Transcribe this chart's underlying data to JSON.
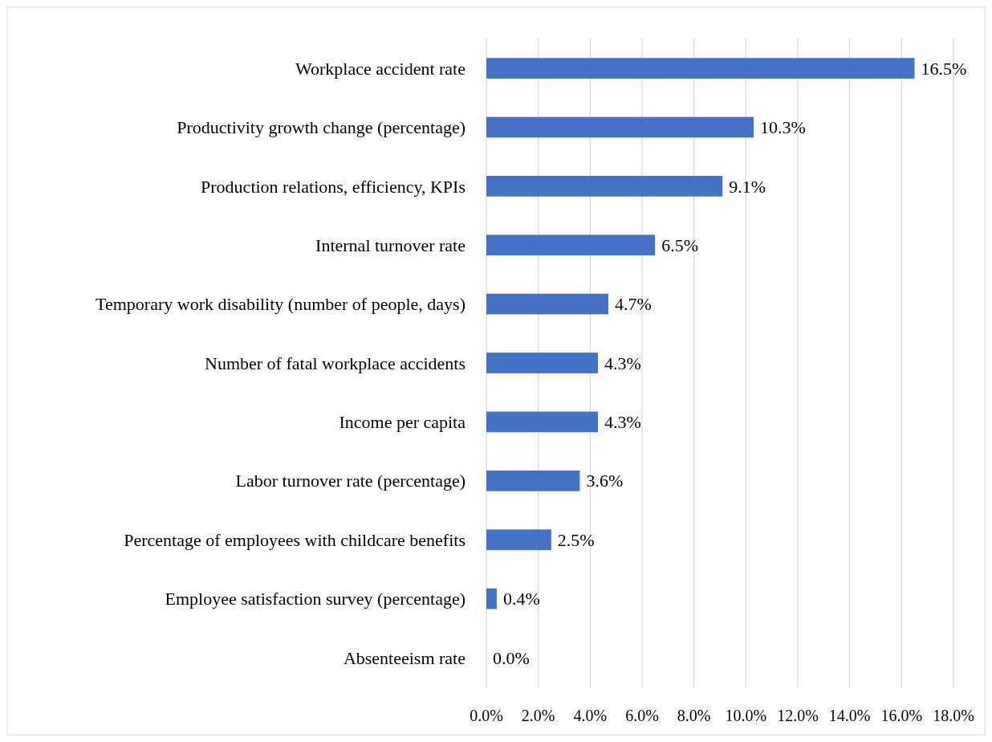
{
  "chart_data": {
    "type": "bar",
    "orientation": "horizontal",
    "categories": [
      "Workplace accident rate",
      "Productivity growth change (percentage)",
      "Production relations, efficiency, KPIs",
      "Internal turnover rate",
      "Temporary work disability (number of people, days)",
      "Number of fatal workplace accidents",
      "Income per capita",
      "Labor turnover rate (percentage)",
      "Percentage of employees with childcare benefits",
      "Employee satisfaction survey (percentage)",
      "Absenteeism rate"
    ],
    "values": [
      16.5,
      10.3,
      9.1,
      6.5,
      4.7,
      4.3,
      4.3,
      3.6,
      2.5,
      0.4,
      0.0
    ],
    "value_labels": [
      "16.5%",
      "10.3%",
      "9.1%",
      "6.5%",
      "4.7%",
      "4.3%",
      "4.3%",
      "3.6%",
      "2.5%",
      "0.4%",
      "0.0%"
    ],
    "color": "#4472c4",
    "xlim": [
      0,
      18
    ],
    "xticks": [
      {
        "value": 0,
        "label": "0.0%"
      },
      {
        "value": 2,
        "label": "2.0%"
      },
      {
        "value": 4,
        "label": "4.0%"
      },
      {
        "value": 6,
        "label": "6.0%"
      },
      {
        "value": 8,
        "label": "8.0%"
      },
      {
        "value": 10,
        "label": "10.0%"
      },
      {
        "value": 12,
        "label": "12.0%"
      },
      {
        "value": 14,
        "label": "14.0%"
      },
      {
        "value": 16,
        "label": "16.0%"
      },
      {
        "value": 18,
        "label": "18.0%"
      }
    ],
    "grid": "x"
  }
}
